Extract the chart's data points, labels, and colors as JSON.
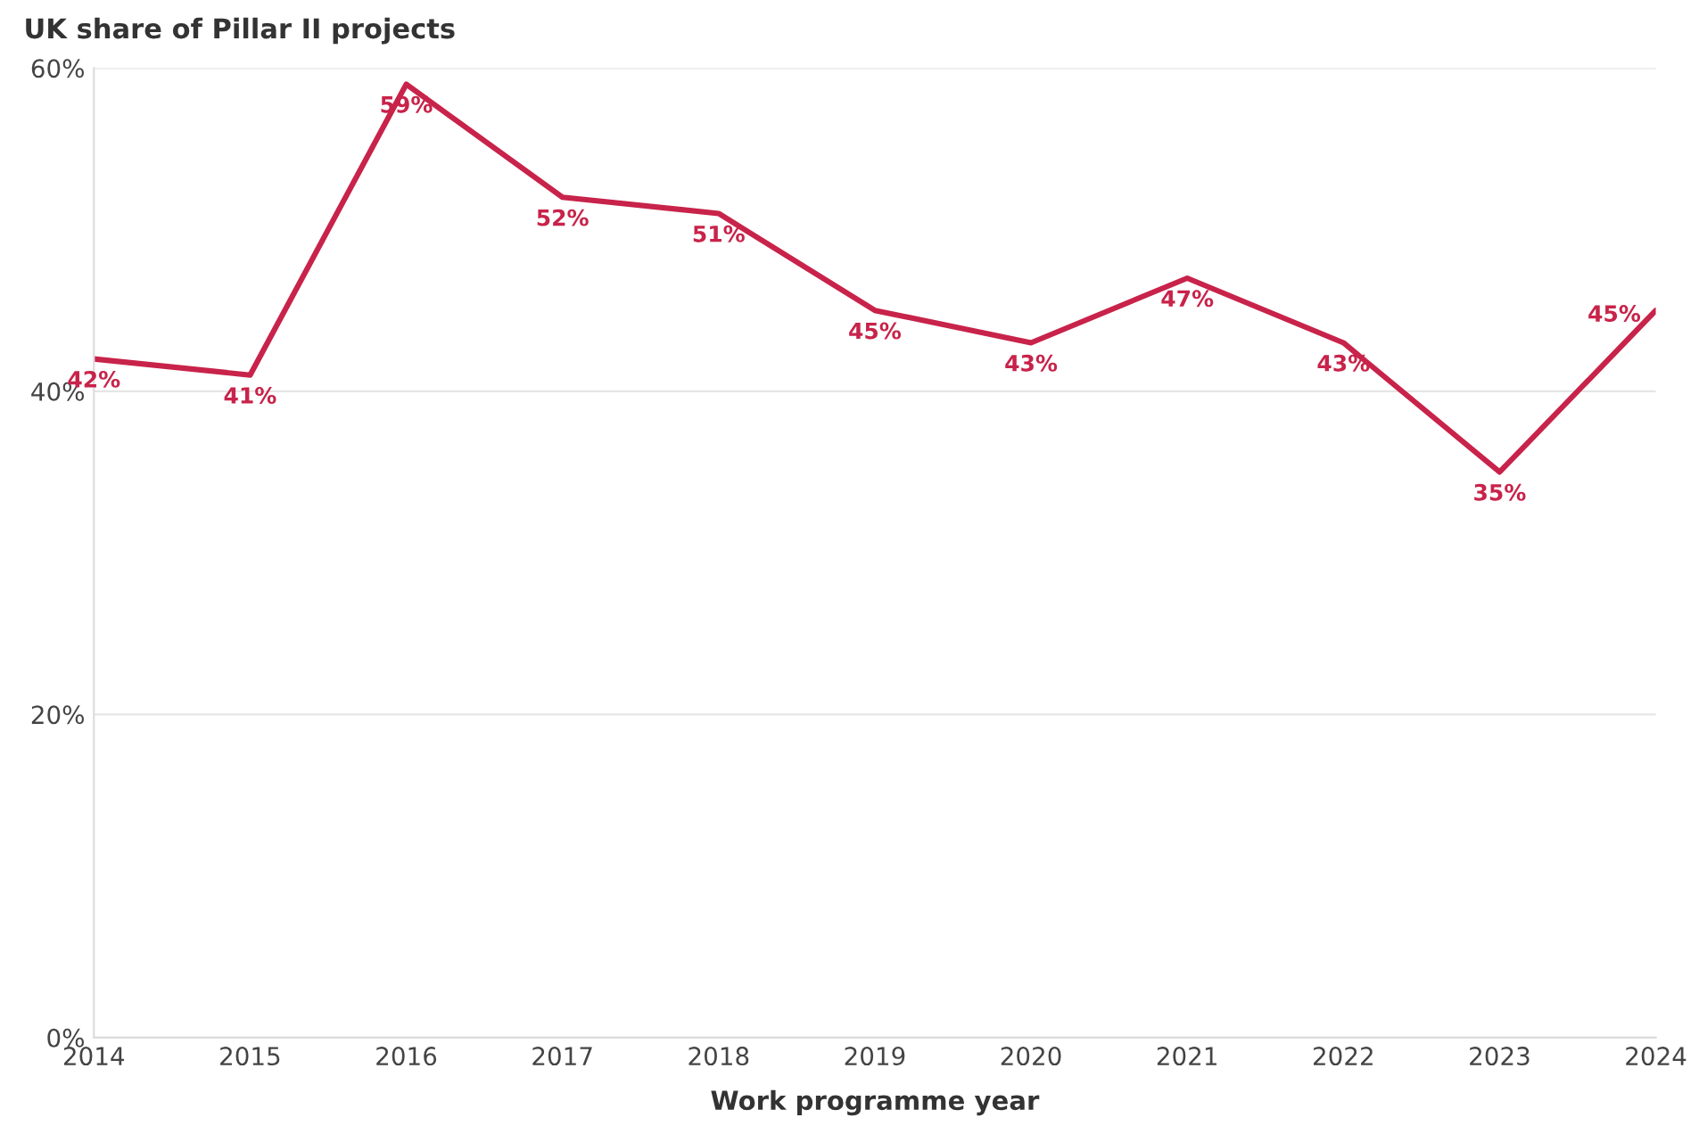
{
  "chart_data": {
    "type": "line",
    "title": "UK share of Pillar II projects",
    "xlabel": "Work programme year",
    "x": [
      2014,
      2015,
      2016,
      2017,
      2018,
      2019,
      2020,
      2021,
      2022,
      2023,
      2024
    ],
    "series": [
      {
        "color": "#c8234a",
        "values": [
          42,
          41,
          59,
          52,
          51,
          45,
          43,
          47,
          43,
          35,
          45
        ],
        "value_labels": [
          "42%",
          "41%",
          "59%",
          "52%",
          "51%",
          "45%",
          "43%",
          "47%",
          "43%",
          "35%",
          "45%"
        ]
      }
    ],
    "xlim": [
      2014,
      2024
    ],
    "xticks": [
      2014,
      2015,
      2016,
      2017,
      2018,
      2019,
      2020,
      2021,
      2022,
      2023,
      2024
    ],
    "ylim": [
      0,
      60
    ],
    "yticks": [
      {
        "value": 0,
        "label": "0%"
      },
      {
        "value": 20,
        "label": "20%"
      },
      {
        "value": 40,
        "label": "40%"
      },
      {
        "value": 60,
        "label": "60%"
      }
    ],
    "grid": "y",
    "legend": false,
    "marker": "none",
    "line_style": "solid"
  }
}
